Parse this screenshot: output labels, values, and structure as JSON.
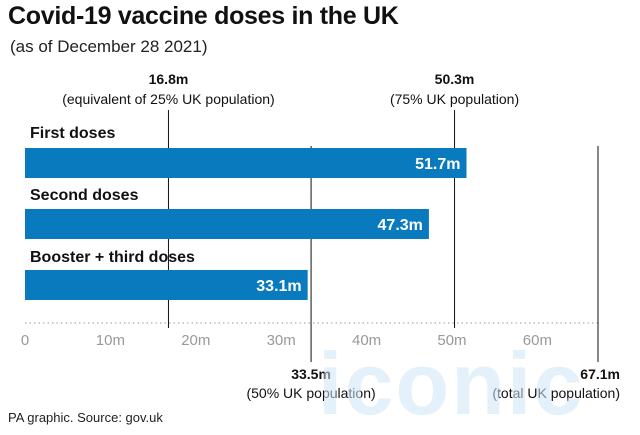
{
  "header": {
    "title": "Covid-19 vaccine doses in the UK",
    "subtitle": "(as of December 28 2021)"
  },
  "footer": {
    "source": "PA graphic. Source: gov.uk"
  },
  "watermark": {
    "text": "iconic"
  },
  "colors": {
    "bar": "#0a7abf",
    "bar_text": "#ffffff",
    "reference_line": "#111111",
    "axis_dotted": "#bbbbbb",
    "tick_text": "#999999"
  },
  "chart_data": {
    "type": "bar",
    "orientation": "horizontal",
    "categories": [
      "First doses",
      "Second doses",
      "Booster + third doses"
    ],
    "values": [
      51.7,
      47.3,
      33.1
    ],
    "value_labels": [
      "51.7m",
      "47.3m",
      "33.1m"
    ],
    "unit": "m",
    "xlim": [
      0,
      67.1
    ],
    "xticks": [
      0,
      10,
      20,
      30,
      40,
      50,
      60
    ],
    "xtick_labels": [
      "0",
      "10m",
      "20m",
      "30m",
      "40m",
      "50m",
      "60m"
    ],
    "reference_lines": [
      {
        "value": 16.8,
        "label": "16.8m",
        "sublabel": "(equivalent of 25% UK population)",
        "position": "top"
      },
      {
        "value": 50.3,
        "label": "50.3m",
        "sublabel": "(75% UK population)",
        "position": "top"
      },
      {
        "value": 33.5,
        "label": "33.5m",
        "sublabel": "(50% UK population)",
        "position": "bottom"
      },
      {
        "value": 67.1,
        "label": "67.1m",
        "sublabel": "(total UK population)",
        "position": "bottom"
      }
    ],
    "grid": false,
    "legend": "none"
  }
}
